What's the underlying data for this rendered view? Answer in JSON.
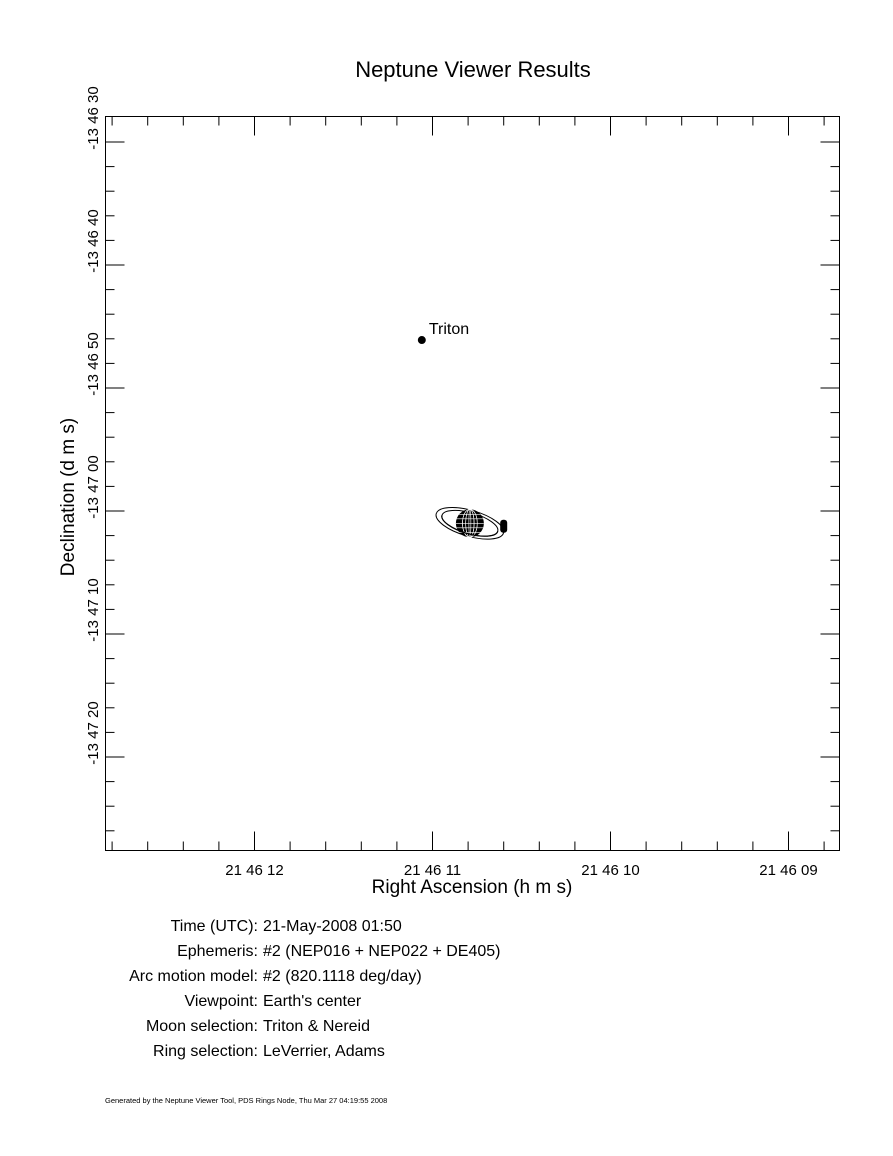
{
  "chart_data": {
    "type": "scatter",
    "title": "Neptune Viewer Results",
    "xlabel": "Right Ascension (h m s)",
    "ylabel": "Declination (d m s)",
    "x_axis": {
      "unit": "seconds of RA (21h 46m + s)",
      "reversed": true,
      "range": [
        12.71,
        8.66
      ],
      "major_ticks": [
        12,
        11,
        10,
        9
      ],
      "tick_labels": [
        "21 46 12",
        "21 46 11",
        "21 46 10",
        "21 46 09"
      ]
    },
    "y_axis": {
      "unit": "arcseconds of declination (-13 deg 46' 30\" and below)",
      "range": [
        -13.775,
        -13.7917
      ],
      "major_ticks": [
        "-13 46 30",
        "-13 46 40",
        "-13 46 50",
        "-13 47 00",
        "-13 47 10",
        "-13 47 20"
      ],
      "tick_labels": [
        "-13 46 30",
        "-13 46 40",
        "-13 46 50",
        "-13 47 00",
        "-13 47 10",
        "-13 47 20"
      ]
    },
    "grid": false,
    "points": [
      {
        "name": "Triton",
        "ra": "21 46 11.06",
        "dec": "-13 46 46.1",
        "ra_s": 11.06,
        "dec_s": 46.1,
        "label": "Triton"
      },
      {
        "name": "Neptune",
        "ra": "21 46 10.79",
        "dec": "-13 47 01.0",
        "ra_s": 10.79,
        "dec_s": 61.0,
        "label": ""
      },
      {
        "name": "Nereid",
        "ra": "21 46 10.60",
        "dec": "-13 47 01.2",
        "ra_s": 10.6,
        "dec_s": 61.2,
        "label": ""
      }
    ]
  },
  "info": [
    {
      "label": "Time (UTC):",
      "value": "21-May-2008 01:50"
    },
    {
      "label": "Ephemeris:",
      "value": "#2 (NEP016 + NEP022 + DE405)"
    },
    {
      "label": "Arc motion model:",
      "value": "#2 (820.1118 deg/day)"
    },
    {
      "label": "Viewpoint:",
      "value": "Earth's center"
    },
    {
      "label": "Moon selection:",
      "value": "Triton & Nereid"
    },
    {
      "label": "Ring selection:",
      "value": "LeVerrier, Adams"
    }
  ],
  "footer": "Generated by the Neptune Viewer Tool, PDS Rings Node, Thu Mar 27 04:19:55 2008"
}
